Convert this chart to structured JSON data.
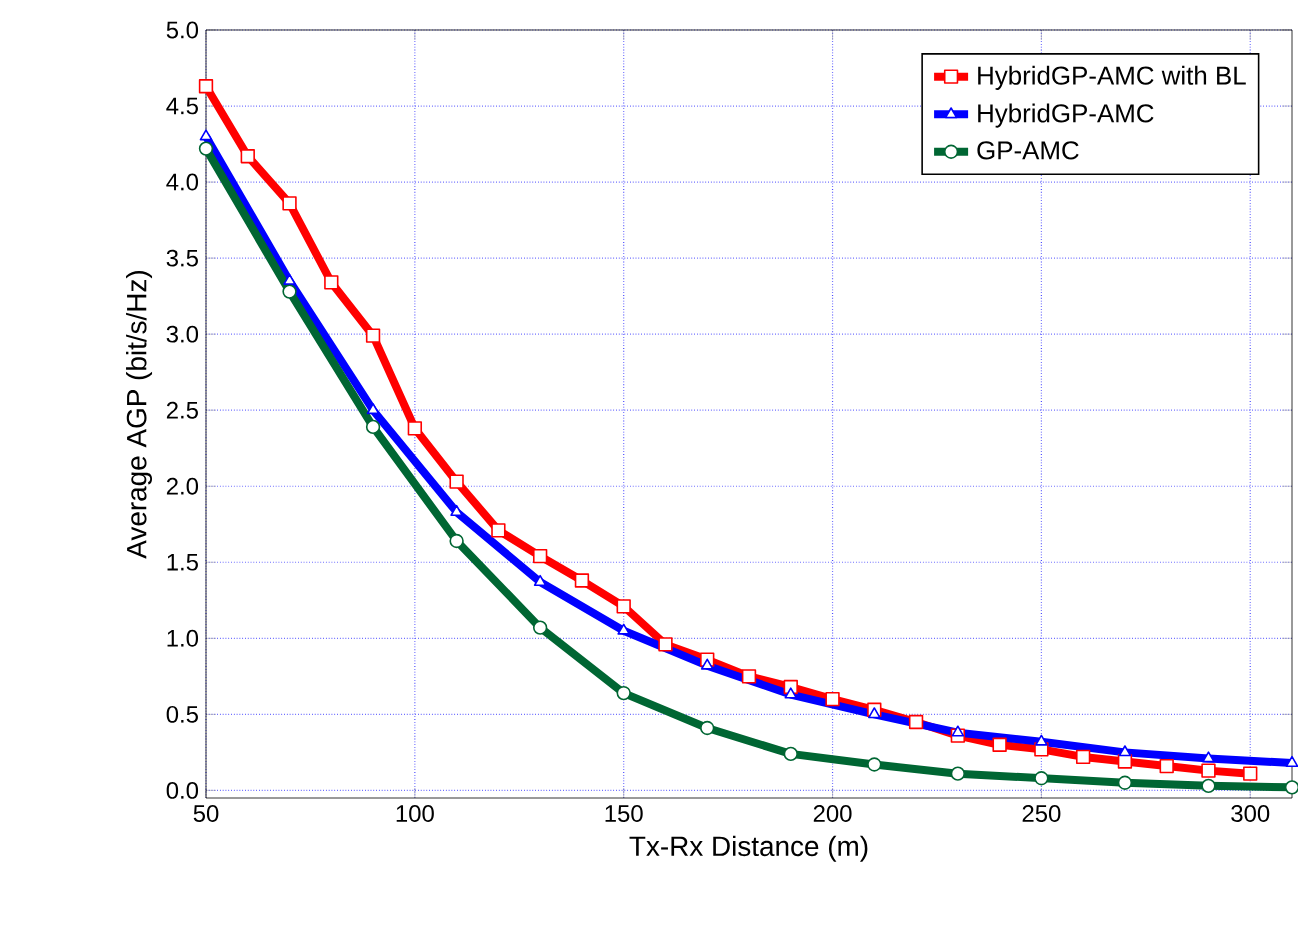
{
  "chart_data": {
    "type": "line",
    "xlabel": "Tx-Rx Distance (m)",
    "ylabel": "Average AGP (bit/s/Hz)",
    "xlim": [
      50,
      310
    ],
    "ylim": [
      -0.05,
      5.0
    ],
    "xticks": [
      50,
      100,
      150,
      200,
      250,
      300
    ],
    "yticks": [
      {
        "value": 0,
        "label": "0.0"
      },
      {
        "value": 0.5,
        "label": "0.5"
      },
      {
        "value": 1,
        "label": "1.0"
      },
      {
        "value": 1.5,
        "label": "1.5"
      },
      {
        "value": 2,
        "label": "2.0"
      },
      {
        "value": 2.5,
        "label": "2.5"
      },
      {
        "value": 3,
        "label": "3.0"
      },
      {
        "value": 3.5,
        "label": "3.5"
      },
      {
        "value": 4,
        "label": "4.0"
      },
      {
        "value": 4.5,
        "label": "4.5"
      },
      {
        "value": 5,
        "label": "5.0"
      }
    ],
    "grid": true,
    "legend": "top right",
    "line_style": "solid",
    "series": [
      {
        "name": "HybridGP-AMC with BL",
        "color": "#ff0000",
        "marker": "square",
        "x": [
          50,
          60,
          70,
          80,
          90,
          100,
          110,
          120,
          130,
          140,
          150,
          160,
          170,
          180,
          190,
          200,
          210,
          220,
          230,
          240,
          250,
          260,
          270,
          280,
          290,
          300
        ],
        "values": [
          4.63,
          4.17,
          3.86,
          3.34,
          2.99,
          2.38,
          2.03,
          1.71,
          1.54,
          1.38,
          1.21,
          0.96,
          0.86,
          0.75,
          0.68,
          0.6,
          0.53,
          0.45,
          0.36,
          0.3,
          0.27,
          0.22,
          0.19,
          0.16,
          0.13,
          0.11
        ]
      },
      {
        "name": "HybridGP-AMC",
        "color": "#0000ff",
        "marker": "triangle",
        "x": [
          50,
          70,
          90,
          110,
          130,
          150,
          170,
          190,
          210,
          230,
          250,
          270,
          290,
          310
        ],
        "values": [
          4.3,
          3.35,
          2.5,
          1.83,
          1.37,
          1.05,
          0.82,
          0.63,
          0.5,
          0.38,
          0.32,
          0.25,
          0.21,
          0.18
        ]
      },
      {
        "name": "GP-AMC",
        "color": "#006633",
        "marker": "circle",
        "x": [
          50,
          70,
          90,
          110,
          130,
          150,
          170,
          190,
          210,
          230,
          250,
          270,
          290,
          310
        ],
        "values": [
          4.22,
          3.28,
          2.39,
          1.64,
          1.07,
          0.64,
          0.41,
          0.24,
          0.17,
          0.11,
          0.08,
          0.05,
          0.03,
          0.02
        ]
      }
    ]
  }
}
